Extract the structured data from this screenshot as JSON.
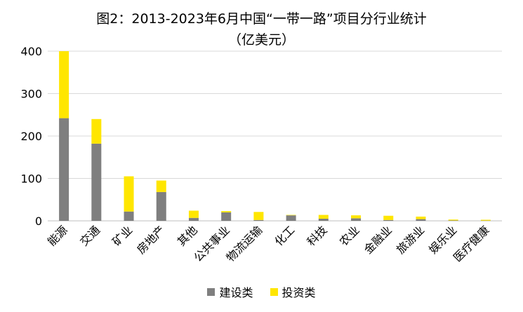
{
  "chart_data": {
    "type": "bar",
    "stacked": true,
    "title": "图2：2013-2023年6月中国“一带一路”项目分行业统计",
    "subtitle": "（亿美元）",
    "categories": [
      "能源",
      "交通",
      "矿业",
      "房地产",
      "其他",
      "公共事业",
      "物流运输",
      "化工",
      "科技",
      "农业",
      "金融业",
      "旅游业",
      "娱乐业",
      "医疗健康"
    ],
    "series": [
      {
        "name": "建设类",
        "color": "#7f7f7f",
        "values": [
          242,
          182,
          22,
          68,
          7,
          20,
          2,
          13,
          5,
          6,
          2,
          4,
          1,
          0.5
        ]
      },
      {
        "name": "投资类",
        "color": "#ffe600",
        "values": [
          158,
          58,
          83,
          27,
          17,
          3,
          19,
          1,
          9,
          7,
          10,
          6,
          2,
          2
        ]
      }
    ],
    "ylim": [
      0,
      400
    ],
    "yticks": [
      0,
      100,
      200,
      300,
      400
    ],
    "grid": true,
    "legend_position": "bottom"
  }
}
